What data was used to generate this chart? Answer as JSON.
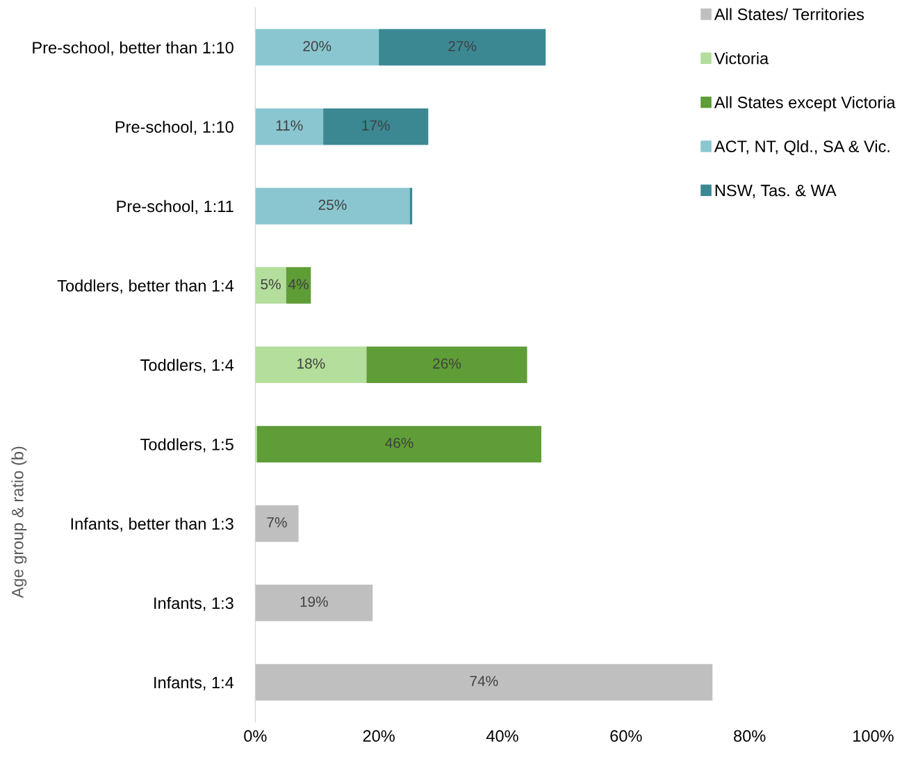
{
  "chart_data": {
    "type": "bar",
    "orientation": "horizontal",
    "stacked": true,
    "ylabel": "Age group & ratio (b)",
    "categories": [
      "Pre-school, better than 1:10",
      "Pre-school, 1:10",
      "Pre-school, 1:11",
      "Toddlers, better than 1:4",
      "Toddlers, 1:4",
      "Toddlers, 1:5",
      "Infants, better than 1:3",
      "Infants, 1:3",
      "Infants, 1:4"
    ],
    "series": [
      {
        "name": "All States/ Territories",
        "color": "#bfbfbf",
        "values": [
          null,
          null,
          null,
          null,
          null,
          null,
          7,
          19,
          74
        ],
        "value_labels": [
          null,
          null,
          null,
          null,
          null,
          null,
          "7%",
          "19%",
          "74%"
        ]
      },
      {
        "name": "Victoria",
        "color": "#b3de9b",
        "values": [
          null,
          null,
          null,
          5,
          18,
          0.3,
          null,
          null,
          null
        ],
        "value_labels": [
          null,
          null,
          null,
          "5%",
          "18%",
          null,
          null,
          null,
          null
        ]
      },
      {
        "name": "All States except Victoria",
        "color": "#5f9d36",
        "values": [
          null,
          null,
          null,
          4,
          26,
          46,
          null,
          null,
          null
        ],
        "value_labels": [
          null,
          null,
          null,
          "4%",
          "26%",
          "46%",
          null,
          null,
          null
        ]
      },
      {
        "name": "ACT, NT, Qld., SA & Vic.",
        "color": "#8ac6cf",
        "values": [
          20,
          11,
          25,
          null,
          null,
          null,
          null,
          null,
          null
        ],
        "value_labels": [
          "20%",
          "11%",
          "25%",
          null,
          null,
          null,
          null,
          null,
          null
        ]
      },
      {
        "name": "NSW, Tas. & WA",
        "color": "#3b8893",
        "values": [
          27,
          17,
          0.4,
          null,
          null,
          null,
          null,
          null,
          null
        ],
        "value_labels": [
          "27%",
          "17%",
          null,
          null,
          null,
          null,
          null,
          null,
          null
        ]
      }
    ],
    "xlim": [
      0,
      100
    ],
    "xticks": [
      {
        "value": 0,
        "label": "0%"
      },
      {
        "value": 20,
        "label": "20%"
      },
      {
        "value": 40,
        "label": "40%"
      },
      {
        "value": 60,
        "label": "60%"
      },
      {
        "value": 80,
        "label": "80%"
      },
      {
        "value": 100,
        "label": "100%"
      }
    ],
    "grid": false,
    "legend": "top right"
  }
}
